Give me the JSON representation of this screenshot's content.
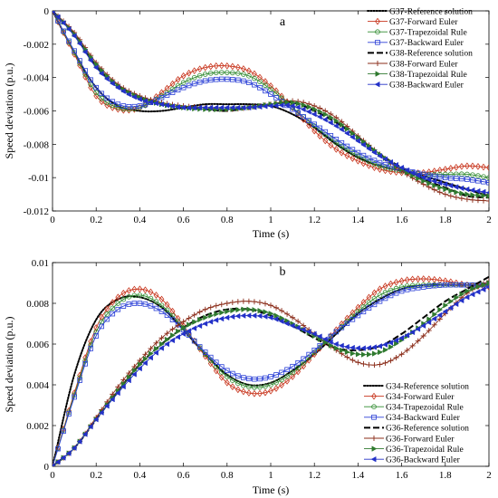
{
  "chart_data": [
    {
      "type": "line",
      "panel_label": "a",
      "title": "",
      "xlabel": "Time (s)",
      "ylabel": "Speed deviation (p.u.)",
      "xlim": [
        0,
        2
      ],
      "ylim": [
        -0.012,
        0
      ],
      "xticks": [
        0,
        0.2,
        0.4,
        0.6,
        0.8,
        1,
        1.2,
        1.4,
        1.6,
        1.8,
        2
      ],
      "xtick_labels": [
        "0",
        "0.2",
        "0.4",
        "0.6",
        "0.8",
        "1",
        "1.2",
        "1.4",
        "1.6",
        "1.8",
        "2"
      ],
      "yticks": [
        0,
        -0.002,
        -0.004,
        -0.006,
        -0.008,
        -0.01,
        -0.012
      ],
      "ytick_labels": [
        "0",
        "-0.002",
        "-0.004",
        "-0.006",
        "-0.008",
        "-0.01",
        "-0.012"
      ],
      "grid": false,
      "legend_position": "top-right",
      "x": [
        0,
        0.1,
        0.2,
        0.3,
        0.4,
        0.5,
        0.6,
        0.7,
        0.8,
        0.9,
        1.0,
        1.1,
        1.2,
        1.3,
        1.4,
        1.5,
        1.6,
        1.7,
        1.8,
        1.9,
        2.0
      ],
      "series": [
        {
          "name": "G37-Reference solution",
          "color": "#000000",
          "style": "dotted",
          "marker": "none",
          "values": [
            0,
            -0.0025,
            -0.0046,
            -0.0057,
            -0.006,
            -0.006,
            -0.0058,
            -0.0056,
            -0.0056,
            -0.0056,
            -0.0057,
            -0.0062,
            -0.007,
            -0.008,
            -0.0088,
            -0.0093,
            -0.0096,
            -0.0099,
            -0.0103,
            -0.0107,
            -0.0111
          ]
        },
        {
          "name": "G37-Forward Euler",
          "color": "#c8361e",
          "style": "solid",
          "marker": "diamond",
          "values": [
            0,
            -0.0026,
            -0.0051,
            -0.0059,
            -0.0058,
            -0.0049,
            -0.0039,
            -0.0034,
            -0.0033,
            -0.0036,
            -0.0045,
            -0.0058,
            -0.0072,
            -0.0083,
            -0.009,
            -0.0095,
            -0.0097,
            -0.0097,
            -0.0095,
            -0.0093,
            -0.0094
          ]
        },
        {
          "name": "G37-Trapezoidal Rule",
          "color": "#2f8a2f",
          "style": "solid",
          "marker": "circle",
          "values": [
            0,
            -0.0025,
            -0.0049,
            -0.0058,
            -0.0058,
            -0.0051,
            -0.0043,
            -0.0038,
            -0.0037,
            -0.0039,
            -0.0047,
            -0.0058,
            -0.0069,
            -0.0079,
            -0.0087,
            -0.0093,
            -0.0096,
            -0.0098,
            -0.0098,
            -0.0098,
            -0.01
          ]
        },
        {
          "name": "G37-Backward Euler",
          "color": "#2a3fd6",
          "style": "solid",
          "marker": "square",
          "values": [
            0,
            -0.0024,
            -0.0046,
            -0.0056,
            -0.0057,
            -0.0052,
            -0.0046,
            -0.0042,
            -0.0041,
            -0.0043,
            -0.005,
            -0.0059,
            -0.0068,
            -0.0077,
            -0.0085,
            -0.0091,
            -0.0095,
            -0.0098,
            -0.01,
            -0.0101,
            -0.0103
          ]
        },
        {
          "name": "G38-Reference solution",
          "color": "#000000",
          "style": "dashed",
          "marker": "none",
          "values": [
            0,
            -0.0014,
            -0.0033,
            -0.0045,
            -0.0052,
            -0.0056,
            -0.0058,
            -0.0059,
            -0.006,
            -0.0058,
            -0.0056,
            -0.0055,
            -0.006,
            -0.0067,
            -0.0076,
            -0.0086,
            -0.0094,
            -0.0101,
            -0.0106,
            -0.0111,
            -0.0112
          ]
        },
        {
          "name": "G38-Forward Euler",
          "color": "#8b2d1a",
          "style": "solid",
          "marker": "plus",
          "values": [
            0,
            -0.0013,
            -0.0031,
            -0.0044,
            -0.0051,
            -0.0055,
            -0.0057,
            -0.0058,
            -0.0059,
            -0.0058,
            -0.0056,
            -0.0054,
            -0.0057,
            -0.0064,
            -0.0075,
            -0.0086,
            -0.0096,
            -0.0104,
            -0.011,
            -0.0113,
            -0.0114
          ]
        },
        {
          "name": "G38-Trapezoidal Rule",
          "color": "#2f7a2f",
          "style": "solid",
          "marker": "triangle-right",
          "values": [
            0,
            -0.0014,
            -0.0032,
            -0.0045,
            -0.0052,
            -0.0056,
            -0.0058,
            -0.0059,
            -0.0059,
            -0.0058,
            -0.0056,
            -0.0055,
            -0.0059,
            -0.0066,
            -0.0076,
            -0.0086,
            -0.0095,
            -0.0102,
            -0.0107,
            -0.011,
            -0.0111
          ]
        },
        {
          "name": "G38-Backward Euler",
          "color": "#2331c8",
          "style": "solid",
          "marker": "triangle-left",
          "values": [
            0,
            -0.0015,
            -0.0034,
            -0.0046,
            -0.0053,
            -0.0056,
            -0.0058,
            -0.0058,
            -0.0058,
            -0.0058,
            -0.0057,
            -0.0057,
            -0.0062,
            -0.0069,
            -0.0078,
            -0.0087,
            -0.0094,
            -0.01,
            -0.0104,
            -0.0107,
            -0.0109
          ]
        }
      ]
    },
    {
      "type": "line",
      "panel_label": "b",
      "title": "",
      "xlabel": "Time (s)",
      "ylabel": "Speed deviation (p.u.)",
      "xlim": [
        0,
        2
      ],
      "ylim": [
        0,
        0.01
      ],
      "xticks": [
        0,
        0.2,
        0.4,
        0.6,
        0.8,
        1,
        1.2,
        1.4,
        1.6,
        1.8,
        2
      ],
      "xtick_labels": [
        "0",
        "0.2",
        "0.4",
        "0.6",
        "0.8",
        "1",
        "1.2",
        "1.4",
        "1.6",
        "1.8",
        "2"
      ],
      "yticks": [
        0,
        0.002,
        0.004,
        0.006,
        0.008,
        0.01
      ],
      "ytick_labels": [
        "0",
        "0.002",
        "0.004",
        "0.006",
        "0.008",
        "0.01"
      ],
      "grid": false,
      "legend_position": "bottom-right",
      "x": [
        0,
        0.1,
        0.2,
        0.3,
        0.4,
        0.5,
        0.6,
        0.7,
        0.8,
        0.9,
        1.0,
        1.1,
        1.2,
        1.3,
        1.4,
        1.5,
        1.6,
        1.7,
        1.8,
        1.9,
        2.0
      ],
      "series": [
        {
          "name": "G34-Reference solution",
          "color": "#000000",
          "style": "dotted",
          "marker": "none",
          "values": [
            0,
            0.0045,
            0.0072,
            0.0082,
            0.0083,
            0.0078,
            0.0067,
            0.0055,
            0.0045,
            0.004,
            0.0041,
            0.0047,
            0.0055,
            0.0065,
            0.0075,
            0.0082,
            0.0087,
            0.0089,
            0.0089,
            0.0089,
            0.0089
          ]
        },
        {
          "name": "G34-Forward Euler",
          "color": "#c8361e",
          "style": "solid",
          "marker": "diamond",
          "values": [
            0,
            0.0036,
            0.0068,
            0.0083,
            0.0087,
            0.0082,
            0.0069,
            0.0054,
            0.0041,
            0.0036,
            0.0037,
            0.0044,
            0.0055,
            0.0067,
            0.0078,
            0.0087,
            0.0091,
            0.0092,
            0.0091,
            0.0089,
            0.0088
          ]
        },
        {
          "name": "G34-Trapezoidal Rule",
          "color": "#2f8a2f",
          "style": "solid",
          "marker": "circle",
          "values": [
            0,
            0.0035,
            0.0066,
            0.008,
            0.0084,
            0.0079,
            0.0068,
            0.0055,
            0.0044,
            0.0039,
            0.004,
            0.0046,
            0.0056,
            0.0066,
            0.0076,
            0.0084,
            0.0088,
            0.0089,
            0.0089,
            0.0089,
            0.0089
          ]
        },
        {
          "name": "G34-Backward Euler",
          "color": "#2a3fd6",
          "style": "solid",
          "marker": "square",
          "values": [
            0,
            0.0034,
            0.0064,
            0.0077,
            0.008,
            0.0076,
            0.0067,
            0.0056,
            0.0047,
            0.0043,
            0.0044,
            0.0049,
            0.0057,
            0.0066,
            0.0074,
            0.0081,
            0.0086,
            0.0088,
            0.0089,
            0.0089,
            0.0089
          ]
        },
        {
          "name": "G36-Reference solution",
          "color": "#000000",
          "style": "dashed",
          "marker": "none",
          "values": [
            0,
            0.0009,
            0.0023,
            0.0037,
            0.005,
            0.006,
            0.0068,
            0.0074,
            0.0077,
            0.0077,
            0.0074,
            0.0069,
            0.0063,
            0.0058,
            0.0057,
            0.0059,
            0.0065,
            0.0073,
            0.0081,
            0.0087,
            0.0093
          ]
        },
        {
          "name": "G36-Forward Euler",
          "color": "#8b2d1a",
          "style": "solid",
          "marker": "plus",
          "values": [
            0,
            0.0009,
            0.0024,
            0.0039,
            0.0052,
            0.0063,
            0.0071,
            0.0077,
            0.008,
            0.0081,
            0.0079,
            0.0073,
            0.0065,
            0.0057,
            0.0051,
            0.005,
            0.0055,
            0.0064,
            0.0075,
            0.0085,
            0.0091
          ]
        },
        {
          "name": "G36-Trapezoidal Rule",
          "color": "#2f7a2f",
          "style": "solid",
          "marker": "triangle-right",
          "values": [
            0,
            0.0009,
            0.0023,
            0.0037,
            0.005,
            0.006,
            0.0068,
            0.0073,
            0.0076,
            0.0077,
            0.0075,
            0.007,
            0.0064,
            0.0058,
            0.0055,
            0.0056,
            0.0062,
            0.007,
            0.0079,
            0.0086,
            0.009
          ]
        },
        {
          "name": "G36-Backward Euler",
          "color": "#2331c8",
          "style": "solid",
          "marker": "triangle-left",
          "values": [
            0,
            0.0009,
            0.0023,
            0.0036,
            0.0048,
            0.0058,
            0.0065,
            0.007,
            0.0073,
            0.0074,
            0.0073,
            0.0069,
            0.0065,
            0.006,
            0.0058,
            0.0059,
            0.0063,
            0.0069,
            0.0076,
            0.0083,
            0.0088
          ]
        }
      ]
    }
  ]
}
